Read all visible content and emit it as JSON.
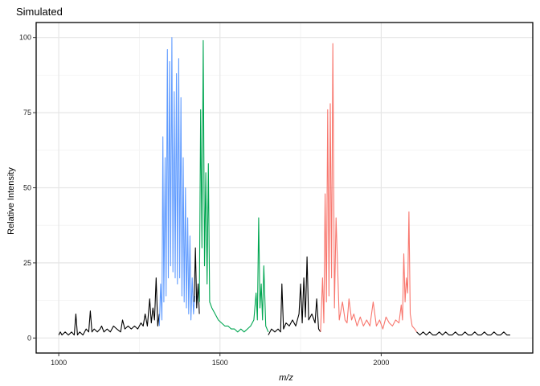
{
  "chart_data": {
    "type": "line",
    "title": "Simulated",
    "xlabel": "m/z",
    "ylabel": "Relative Intensity",
    "xlim": [
      930,
      2470
    ],
    "ylim": [
      -5,
      105
    ],
    "x_ticks": [
      1000,
      1500,
      2000
    ],
    "x_tick_labels": [
      "1000",
      "1500",
      "2000"
    ],
    "y_ticks": [
      0,
      25,
      50,
      75,
      100
    ],
    "y_tick_labels": [
      "0",
      "25",
      "50",
      "75",
      "100"
    ],
    "grid": true,
    "series": [
      {
        "color": "#000000",
        "x": [
          1000,
          1005,
          1010,
          1020,
          1030,
          1040,
          1048,
          1053,
          1058,
          1065,
          1075,
          1085,
          1093,
          1098,
          1103,
          1110,
          1120,
          1128,
          1133,
          1140,
          1150,
          1160,
          1170,
          1180,
          1192,
          1198,
          1205,
          1215,
          1225,
          1235,
          1245,
          1255,
          1262,
          1268,
          1275,
          1282,
          1287,
          1292,
          1297,
          1302,
          1307,
          1312
        ],
        "y": [
          1,
          2,
          1,
          2,
          1,
          2,
          1,
          8,
          1,
          2,
          1,
          3,
          2,
          9,
          2,
          3,
          2,
          3,
          4,
          2,
          3,
          2,
          4,
          3,
          2,
          6,
          3,
          4,
          3,
          4,
          3,
          5,
          4,
          8,
          4,
          13,
          5,
          10,
          6,
          20,
          4,
          8
        ]
      },
      {
        "color": "#619CFF",
        "x": [
          1312,
          1316,
          1320,
          1323,
          1326,
          1330,
          1333,
          1337,
          1340,
          1344,
          1347,
          1351,
          1354,
          1358,
          1361,
          1365,
          1368,
          1372,
          1375,
          1379,
          1382,
          1386,
          1389,
          1393,
          1396,
          1400,
          1403,
          1407,
          1410,
          1414,
          1418,
          1422
        ],
        "y": [
          4,
          18,
          6,
          67,
          12,
          60,
          14,
          96,
          20,
          92,
          24,
          100,
          22,
          82,
          20,
          88,
          18,
          93,
          20,
          80,
          14,
          60,
          12,
          50,
          10,
          40,
          8,
          34,
          6,
          20,
          8,
          14
        ]
      },
      {
        "color": "#000000",
        "x": [
          1420,
          1424,
          1428,
          1432,
          1436
        ],
        "y": [
          12,
          30,
          10,
          18,
          8
        ]
      },
      {
        "color": "#00A651",
        "x": [
          1436,
          1440,
          1444,
          1448,
          1452,
          1456,
          1460,
          1464,
          1468,
          1475,
          1485,
          1495,
          1505,
          1515,
          1525,
          1535,
          1545,
          1555,
          1565,
          1575,
          1585,
          1595,
          1605,
          1612,
          1616,
          1620,
          1624,
          1628,
          1632,
          1636,
          1642,
          1650
        ],
        "y": [
          12,
          76,
          30,
          99,
          24,
          55,
          18,
          58,
          12,
          10,
          8,
          6,
          5,
          4,
          4,
          3,
          3,
          2,
          3,
          2,
          3,
          4,
          6,
          15,
          6,
          40,
          10,
          18,
          6,
          24,
          4,
          2
        ]
      },
      {
        "color": "#000000",
        "x": [
          1650,
          1660,
          1670,
          1680,
          1688,
          1692,
          1697,
          1705,
          1715,
          1725,
          1735,
          1745,
          1750,
          1755,
          1760,
          1765,
          1770,
          1775,
          1785,
          1795,
          1800,
          1806,
          1812
        ],
        "y": [
          1,
          3,
          2,
          3,
          2,
          18,
          3,
          5,
          4,
          6,
          4,
          8,
          18,
          5,
          20,
          7,
          27,
          6,
          8,
          5,
          13,
          3,
          2
        ]
      },
      {
        "color": "#F8766D",
        "x": [
          1812,
          1818,
          1822,
          1826,
          1830,
          1834,
          1838,
          1842,
          1846,
          1850,
          1855,
          1860,
          1870,
          1880,
          1888,
          1894,
          1900,
          1908,
          1915,
          1925,
          1935,
          1945,
          1955,
          1965,
          1975,
          1985,
          1995,
          2005,
          2015,
          2025,
          2035,
          2045,
          2055,
          2062,
          2066,
          2070,
          2074,
          2078,
          2082,
          2086,
          2090,
          2096,
          2104,
          2110
        ],
        "y": [
          2,
          20,
          5,
          48,
          12,
          76,
          14,
          78,
          20,
          98,
          10,
          40,
          6,
          12,
          6,
          5,
          13,
          6,
          8,
          4,
          7,
          4,
          6,
          4,
          12,
          4,
          6,
          3,
          7,
          5,
          4,
          6,
          5,
          11,
          6,
          28,
          12,
          20,
          15,
          42,
          8,
          4,
          3,
          2
        ]
      },
      {
        "color": "#000000",
        "x": [
          2110,
          2120,
          2130,
          2140,
          2150,
          2160,
          2170,
          2180,
          2190,
          2200,
          2210,
          2220,
          2230,
          2240,
          2250,
          2260,
          2270,
          2280,
          2290,
          2300,
          2310,
          2320,
          2330,
          2340,
          2350,
          2360,
          2370,
          2380,
          2390,
          2400
        ],
        "y": [
          2,
          1,
          2,
          1,
          2,
          1,
          1,
          2,
          1,
          2,
          1,
          1,
          2,
          1,
          1,
          2,
          1,
          1,
          2,
          1,
          1,
          2,
          1,
          1,
          2,
          1,
          1,
          2,
          1,
          1
        ]
      }
    ]
  }
}
